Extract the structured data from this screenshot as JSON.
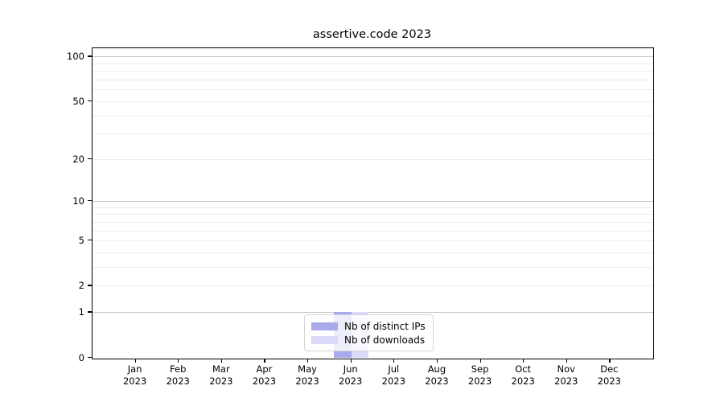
{
  "chart": {
    "title": "assertive.code 2023"
  },
  "chart_data": {
    "type": "bar",
    "title": "assertive.code 2023",
    "categories": [
      "Jan 2023",
      "Feb 2023",
      "Mar 2023",
      "Apr 2023",
      "May 2023",
      "Jun 2023",
      "Jul 2023",
      "Aug 2023",
      "Sep 2023",
      "Oct 2023",
      "Nov 2023",
      "Dec 2023"
    ],
    "series": [
      {
        "name": "Nb of distinct IPs",
        "slug": "distinct-ips",
        "color": "#a9a9ec",
        "values": [
          0,
          0,
          0,
          0,
          0,
          1,
          0,
          0,
          0,
          0,
          0,
          0
        ]
      },
      {
        "name": "Nb of downloads",
        "slug": "downloads",
        "color": "#dadaf8",
        "values": [
          0,
          0,
          0,
          0,
          0,
          1,
          0,
          0,
          0,
          0,
          0,
          0
        ]
      }
    ],
    "xlabel": "",
    "ylabel": "",
    "yscale": "log10(1+v)",
    "ylim": [
      0,
      113
    ],
    "y_tick_labels": [
      0,
      1,
      2,
      5,
      10,
      20,
      50,
      100
    ],
    "y_major_gridlines": [
      1,
      10,
      100
    ],
    "y_minor_gridlines": [
      2,
      3,
      4,
      5,
      6,
      7,
      8,
      9,
      20,
      30,
      40,
      50,
      60,
      70,
      80,
      90
    ],
    "grid": "horizontal",
    "legend_position": "lower center",
    "colors": {
      "major_grid": "#c6c6c6",
      "minor_grid": "#ededed",
      "spine": "#000000"
    }
  }
}
